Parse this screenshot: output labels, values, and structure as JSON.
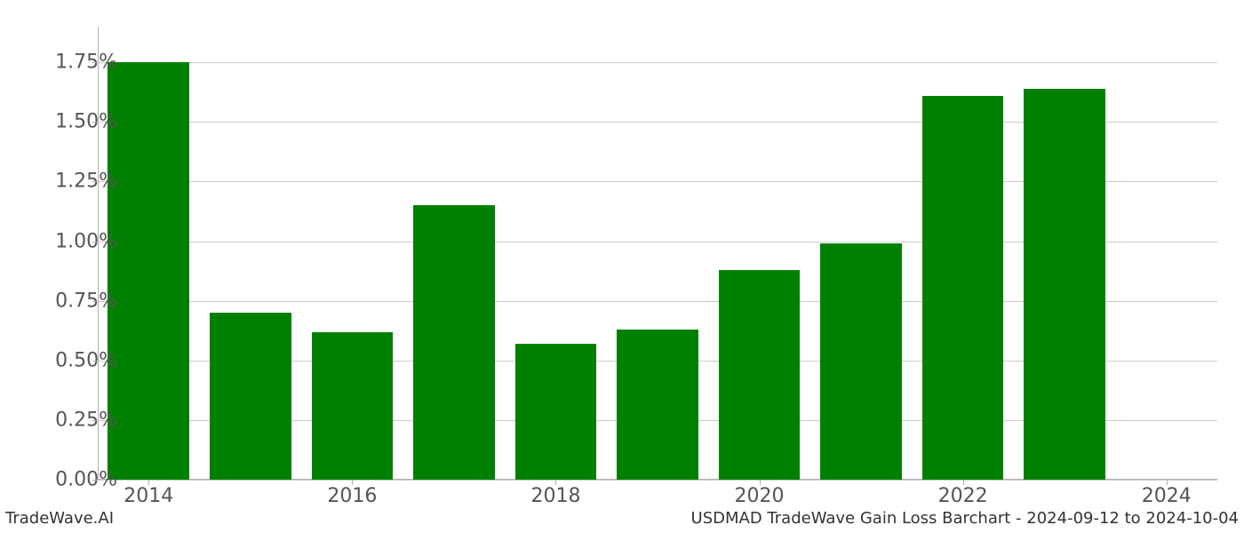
{
  "chart": {
    "type": "bar",
    "years": [
      2014,
      2015,
      2016,
      2017,
      2018,
      2019,
      2020,
      2021,
      2022,
      2023,
      2024
    ],
    "values": [
      1.75,
      0.7,
      0.62,
      1.15,
      0.57,
      0.63,
      0.88,
      0.99,
      1.61,
      1.64,
      0.0
    ],
    "bar_color": "#008000",
    "background_color": "#ffffff",
    "grid_color": "#cccccc",
    "axis_color": "#b0b0b0",
    "tick_label_color": "#555555",
    "ylim": [
      0.0,
      1.9
    ],
    "yticks": [
      0.0,
      0.25,
      0.5,
      0.75,
      1.0,
      1.25,
      1.5,
      1.75
    ],
    "ytick_labels": [
      "0.00%",
      "0.25%",
      "0.50%",
      "0.75%",
      "1.00%",
      "1.25%",
      "1.50%",
      "1.75%"
    ],
    "xtick_years": [
      2014,
      2016,
      2018,
      2020,
      2022,
      2024
    ],
    "xtick_labels": [
      "2014",
      "2016",
      "2018",
      "2020",
      "2022",
      "2024"
    ],
    "bar_width_ratio": 0.8,
    "tick_fontsize": 22,
    "footer_fontsize": 18
  },
  "footer": {
    "left": "TradeWave.AI",
    "right": "USDMAD TradeWave Gain Loss Barchart - 2024-09-12 to 2024-10-04"
  }
}
